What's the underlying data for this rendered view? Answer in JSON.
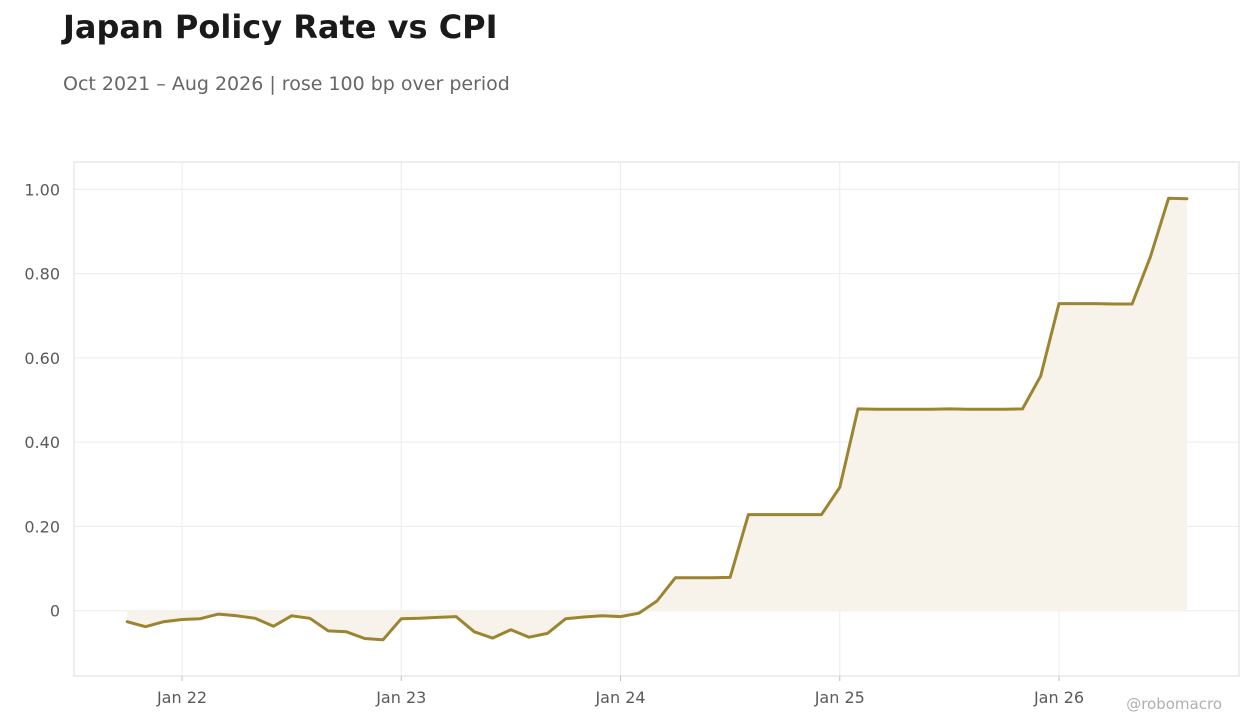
{
  "header": {
    "title": "Japan Policy Rate vs CPI",
    "subtitle": "Oct 2021 – Aug 2026 | rose 100 bp over period"
  },
  "watermark": "@robomacro",
  "colors": {
    "line": "#9b8530",
    "fill": "#f7f3ea",
    "grid": "#ececec",
    "frame": "#dcdcdc"
  },
  "chart_data": {
    "type": "area",
    "title": "Japan Policy Rate vs CPI",
    "xlabel": "",
    "ylabel": "",
    "x_ticks": [
      "Jan 22",
      "Jan 23",
      "Jan 24",
      "Jan 25",
      "Jan 26"
    ],
    "y_ticks": [
      0,
      0.2,
      0.4,
      0.6,
      0.8,
      1.0
    ],
    "y_tick_labels": [
      "0",
      "0.20",
      "0.40",
      "0.60",
      "0.80",
      "1.00"
    ],
    "ylim": [
      -0.155,
      1.065
    ],
    "grid": true,
    "legend": "none",
    "x": [
      "2021-10",
      "2021-11",
      "2021-12",
      "2022-01",
      "2022-02",
      "2022-03",
      "2022-04",
      "2022-05",
      "2022-06",
      "2022-07",
      "2022-08",
      "2022-09",
      "2022-10",
      "2022-11",
      "2022-12",
      "2023-01",
      "2023-02",
      "2023-03",
      "2023-04",
      "2023-05",
      "2023-06",
      "2023-07",
      "2023-08",
      "2023-09",
      "2023-10",
      "2023-11",
      "2023-12",
      "2024-01",
      "2024-02",
      "2024-03",
      "2024-04",
      "2024-05",
      "2024-06",
      "2024-07",
      "2024-08",
      "2024-09",
      "2024-10",
      "2024-11",
      "2024-12",
      "2025-01",
      "2025-02",
      "2025-03",
      "2025-04",
      "2025-05",
      "2025-06",
      "2025-07",
      "2025-08",
      "2025-09",
      "2025-10",
      "2025-11",
      "2025-12",
      "2026-01",
      "2026-02",
      "2026-03",
      "2026-04",
      "2026-05",
      "2026-06",
      "2026-07",
      "2026-08"
    ],
    "series": [
      {
        "values": [
          -0.026,
          -0.038,
          -0.026,
          -0.021,
          -0.019,
          -0.008,
          -0.012,
          -0.018,
          -0.037,
          -0.012,
          -0.018,
          -0.048,
          -0.05,
          -0.066,
          -0.069,
          -0.019,
          -0.018,
          -0.016,
          -0.014,
          -0.05,
          -0.065,
          -0.045,
          -0.063,
          -0.054,
          -0.019,
          -0.015,
          -0.012,
          -0.014,
          -0.006,
          0.023,
          0.078,
          0.078,
          0.078,
          0.079,
          0.228,
          0.228,
          0.228,
          0.228,
          0.228,
          0.293,
          0.479,
          0.478,
          0.478,
          0.478,
          0.478,
          0.479,
          0.478,
          0.478,
          0.478,
          0.479,
          0.557,
          0.729,
          0.729,
          0.729,
          0.728,
          0.728,
          0.84,
          0.979,
          0.978
        ]
      }
    ]
  }
}
